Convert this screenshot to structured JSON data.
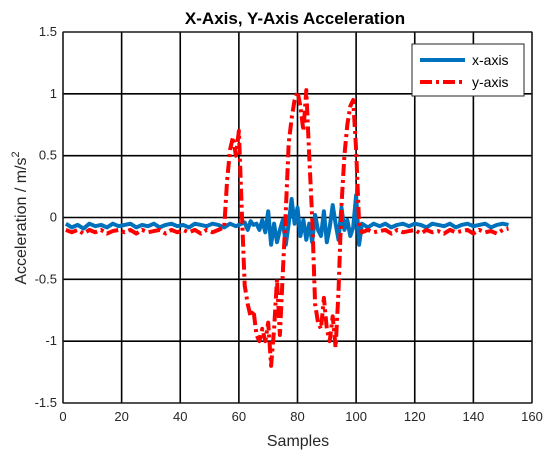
{
  "chart_data": {
    "type": "line",
    "title": "X-Axis, Y-Axis Acceleration",
    "xlabel": "Samples",
    "ylabel": "Acceleration / m/s",
    "ylabel_superscript": "2",
    "xlim": [
      0,
      160
    ],
    "ylim": [
      -1.5,
      1.5
    ],
    "xticks": [
      "0",
      "20",
      "40",
      "60",
      "80",
      "100",
      "120",
      "140",
      "160"
    ],
    "yticks": [
      "-1.5",
      "-1",
      "-0.5",
      "0",
      "0.5",
      "1",
      "1.5"
    ],
    "grid": true,
    "legend_position": "top-right",
    "series": [
      {
        "name": "x-axis",
        "color": "#0072BD",
        "style": "solid",
        "x": [
          1,
          3,
          5,
          7,
          9,
          11,
          13,
          15,
          17,
          19,
          21,
          23,
          25,
          27,
          29,
          31,
          33,
          35,
          37,
          39,
          41,
          43,
          45,
          47,
          49,
          51,
          53,
          55,
          57,
          59,
          61,
          62,
          63,
          64,
          65,
          66,
          67,
          68,
          69,
          70,
          71,
          72,
          73,
          74,
          75,
          76,
          77,
          78,
          79,
          80,
          81,
          82,
          83,
          84,
          85,
          86,
          87,
          88,
          89,
          90,
          91,
          92,
          93,
          94,
          95,
          96,
          97,
          98,
          99,
          100,
          101,
          102,
          104,
          106,
          108,
          110,
          112,
          114,
          116,
          118,
          120,
          122,
          124,
          126,
          128,
          130,
          132,
          134,
          136,
          138,
          140,
          142,
          144,
          146,
          148,
          150,
          152
        ],
        "y": [
          -0.05,
          -0.08,
          -0.06,
          -0.09,
          -0.05,
          -0.07,
          -0.06,
          -0.08,
          -0.05,
          -0.07,
          -0.06,
          -0.05,
          -0.08,
          -0.06,
          -0.07,
          -0.05,
          -0.08,
          -0.06,
          -0.05,
          -0.07,
          -0.06,
          -0.08,
          -0.05,
          -0.06,
          -0.07,
          -0.05,
          -0.06,
          -0.08,
          -0.05,
          -0.07,
          -0.05,
          -0.04,
          -0.1,
          -0.03,
          -0.06,
          -0.05,
          -0.1,
          -0.02,
          -0.12,
          0.05,
          -0.22,
          -0.05,
          -0.2,
          -0.1,
          -0.02,
          -0.22,
          -0.05,
          0.15,
          -0.05,
          0.08,
          -0.15,
          -0.02,
          -0.18,
          -0.05,
          -0.2,
          0.02,
          -0.1,
          -0.15,
          0.05,
          -0.2,
          -0.08,
          0.1,
          -0.05,
          -0.18,
          0.08,
          -0.1,
          -0.02,
          -0.15,
          -0.08,
          0.18,
          -0.22,
          -0.05,
          -0.08,
          -0.05,
          -0.07,
          -0.05,
          -0.08,
          -0.06,
          -0.05,
          -0.07,
          -0.05,
          -0.06,
          -0.08,
          -0.05,
          -0.06,
          -0.07,
          -0.05,
          -0.08,
          -0.06,
          -0.05,
          -0.07,
          -0.06,
          -0.05,
          -0.08,
          -0.06,
          -0.05,
          -0.06
        ]
      },
      {
        "name": "y-axis",
        "color": "#FF0000",
        "style": "dashdot",
        "x": [
          1,
          3,
          5,
          7,
          9,
          11,
          13,
          15,
          17,
          19,
          21,
          23,
          25,
          27,
          29,
          31,
          33,
          35,
          37,
          39,
          41,
          43,
          45,
          47,
          49,
          51,
          53,
          55,
          56,
          57,
          58,
          59,
          60,
          61,
          62,
          63,
          64,
          65,
          66,
          67,
          68,
          69,
          70,
          71,
          72,
          73,
          74,
          75,
          76,
          77,
          78,
          79,
          80,
          81,
          82,
          83,
          84,
          85,
          86,
          87,
          88,
          89,
          90,
          91,
          92,
          93,
          94,
          95,
          96,
          97,
          98,
          99,
          100,
          101,
          102,
          104,
          106,
          108,
          110,
          112,
          114,
          116,
          118,
          120,
          122,
          124,
          126,
          128,
          130,
          132,
          134,
          136,
          138,
          140,
          142,
          144,
          146,
          148,
          150,
          152
        ],
        "y": [
          -0.1,
          -0.12,
          -0.1,
          -0.13,
          -0.1,
          -0.12,
          -0.1,
          -0.13,
          -0.11,
          -0.1,
          -0.12,
          -0.1,
          -0.13,
          -0.1,
          -0.12,
          -0.11,
          -0.1,
          -0.13,
          -0.1,
          -0.12,
          -0.1,
          -0.12,
          -0.1,
          -0.13,
          -0.1,
          -0.12,
          -0.1,
          -0.08,
          0.3,
          0.55,
          0.65,
          0.5,
          0.7,
          0.05,
          -0.55,
          -0.7,
          -0.8,
          -0.75,
          -0.95,
          -1.0,
          -0.9,
          -1.0,
          -0.85,
          -1.2,
          -0.9,
          -0.5,
          -0.95,
          -0.45,
          0.05,
          0.6,
          0.8,
          0.95,
          1.02,
          0.9,
          0.7,
          1.03,
          0.5,
          0.0,
          -0.7,
          -0.85,
          -0.9,
          -0.65,
          -0.9,
          -1.0,
          -0.8,
          -1.05,
          -0.6,
          0.1,
          0.5,
          0.75,
          0.9,
          0.95,
          0.55,
          -0.05,
          -0.12,
          -0.1,
          -0.12,
          -0.11,
          -0.1,
          -0.13,
          -0.1,
          -0.12,
          -0.11,
          -0.1,
          -0.13,
          -0.1,
          -0.12,
          -0.11,
          -0.13,
          -0.1,
          -0.12,
          -0.11,
          -0.1,
          -0.13,
          -0.1,
          -0.12,
          -0.11,
          -0.13,
          -0.1,
          -0.09
        ]
      }
    ]
  }
}
